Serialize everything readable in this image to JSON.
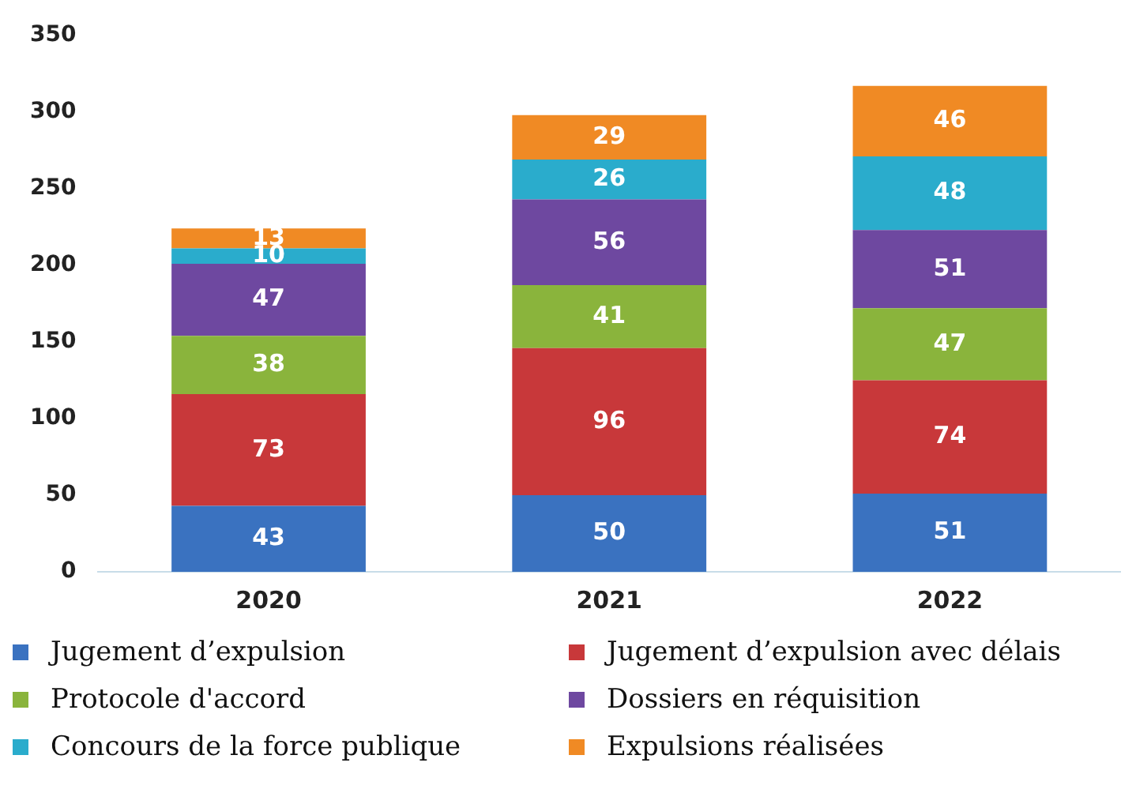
{
  "chart_data": {
    "type": "bar",
    "stacked": true,
    "categories": [
      "2020",
      "2021",
      "2022"
    ],
    "series": [
      {
        "name": "Jugement d’expulsion",
        "color": "#3a72c0",
        "values": [
          43,
          50,
          51
        ]
      },
      {
        "name": "Jugement d’expulsion avec délais",
        "color": "#c8383a",
        "values": [
          73,
          96,
          74
        ]
      },
      {
        "name": "Protocole d'accord",
        "color": "#8ab43c",
        "values": [
          38,
          41,
          47
        ]
      },
      {
        "name": "Dossiers en réquisition",
        "color": "#6e48a0",
        "values": [
          47,
          56,
          51
        ]
      },
      {
        "name": "Concours de la force publique",
        "color": "#2aaccc",
        "values": [
          10,
          26,
          48
        ]
      },
      {
        "name": "Expulsions réalisées",
        "color": "#f08a24",
        "values": [
          13,
          29,
          46
        ]
      }
    ],
    "ylim": [
      0,
      350
    ],
    "yticks": [
      0,
      50,
      100,
      150,
      200,
      250,
      300,
      350
    ],
    "grid": false,
    "legend": "bottom",
    "data_labels": true
  }
}
